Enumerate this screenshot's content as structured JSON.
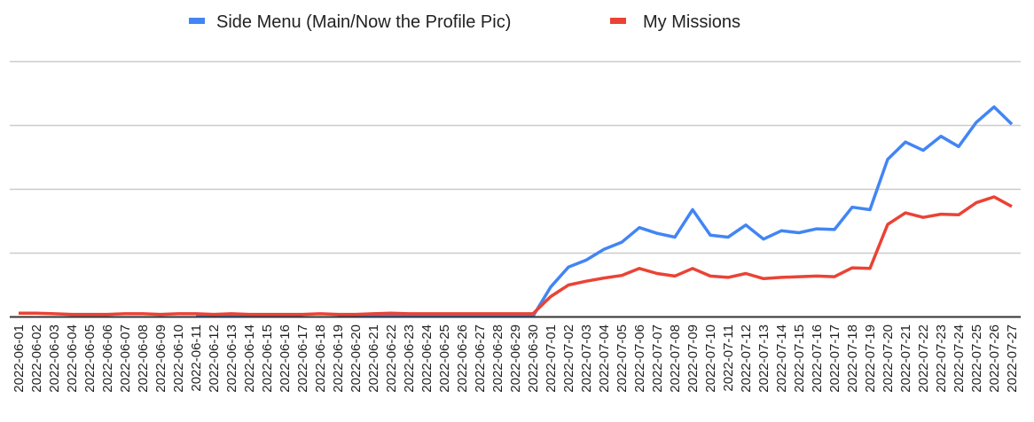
{
  "chart_data": {
    "type": "line",
    "title": "",
    "xlabel": "",
    "ylabel": "",
    "y_tick_labels_visible": false,
    "grid": true,
    "gridline_count": 4,
    "legend_position": "top",
    "ylim": [
      0,
      400
    ],
    "y_units_note": "relative units; gridlines at 100, 200, 300, 400 (no axis labels shown)",
    "x": [
      "2022-06-01",
      "2022-06-02",
      "2022-06-03",
      "2022-06-04",
      "2022-06-05",
      "2022-06-06",
      "2022-06-07",
      "2022-06-08",
      "2022-06-09",
      "2022-06-10",
      "2022-06-11",
      "2022-06-12",
      "2022-06-13",
      "2022-06-14",
      "2022-06-15",
      "2022-06-16",
      "2022-06-17",
      "2022-06-18",
      "2022-06-19",
      "2022-06-20",
      "2022-06-21",
      "2022-06-22",
      "2022-06-23",
      "2022-06-24",
      "2022-06-25",
      "2022-06-26",
      "2022-06-27",
      "2022-06-28",
      "2022-06-29",
      "2022-06-30",
      "2022-07-01",
      "2022-07-02",
      "2022-07-03",
      "2022-07-04",
      "2022-07-05",
      "2022-07-06",
      "2022-07-07",
      "2022-07-08",
      "2022-07-09",
      "2022-07-10",
      "2022-07-11",
      "2022-07-12",
      "2022-07-13",
      "2022-07-14",
      "2022-07-15",
      "2022-07-16",
      "2022-07-17",
      "2022-07-18",
      "2022-07-19",
      "2022-07-20",
      "2022-07-21",
      "2022-07-22",
      "2022-07-23",
      "2022-07-24",
      "2022-07-25",
      "2022-07-26",
      "2022-07-27"
    ],
    "series": [
      {
        "name": "Side Menu (Main/Now the Profile Pic)",
        "color": "#4285F4",
        "values": [
          null,
          null,
          null,
          null,
          null,
          null,
          null,
          null,
          null,
          null,
          1,
          1,
          1,
          1,
          1,
          1,
          1,
          null,
          1,
          1,
          1,
          1,
          1,
          1,
          1,
          1,
          1,
          1,
          1,
          1,
          47,
          78,
          89,
          106,
          117,
          140,
          131,
          125,
          168,
          128,
          125,
          144,
          122,
          135,
          132,
          138,
          137,
          172,
          168,
          247,
          274,
          261,
          283,
          267,
          305,
          329,
          302
        ]
      },
      {
        "name": "My Missions",
        "color": "#EA4335",
        "values": [
          6,
          6,
          5,
          4,
          4,
          4,
          5,
          5,
          4,
          5,
          5,
          4,
          5,
          4,
          4,
          4,
          4,
          5,
          4,
          4,
          5,
          6,
          5,
          5,
          5,
          5,
          5,
          5,
          5,
          5,
          32,
          50,
          56,
          61,
          65,
          76,
          68,
          64,
          76,
          64,
          62,
          68,
          60,
          62,
          63,
          64,
          63,
          77,
          76,
          145,
          163,
          156,
          161,
          160,
          179,
          188,
          173
        ]
      }
    ]
  },
  "legend": {
    "items": [
      {
        "label": "Side Menu (Main/Now the Profile Pic)",
        "color": "#4285F4"
      },
      {
        "label": "My Missions",
        "color": "#EA4335"
      }
    ]
  },
  "colors": {
    "gridline": "#cccccc",
    "axis": "#333333",
    "text": "#222222"
  }
}
